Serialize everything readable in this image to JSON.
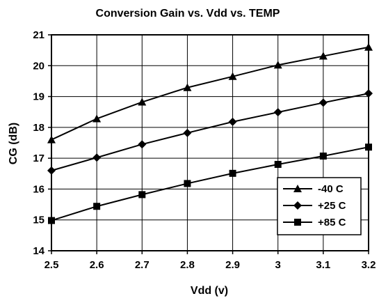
{
  "chart_data": {
    "type": "line",
    "title": "Conversion Gain vs. Vdd vs. TEMP",
    "xlabel": "Vdd (v)",
    "ylabel": "CG (dB)",
    "x": [
      2.5,
      2.6,
      2.7,
      2.8,
      2.9,
      3.0,
      3.1,
      3.2
    ],
    "x_tick_labels": [
      "2.5",
      "2.6",
      "2.7",
      "2.8",
      "2.9",
      "3",
      "3.1",
      "3.2"
    ],
    "y_ticks": [
      14,
      15,
      16,
      17,
      18,
      19,
      20,
      21
    ],
    "y_tick_labels": [
      "14",
      "15",
      "16",
      "17",
      "18",
      "19",
      "20",
      "21"
    ],
    "xlim": [
      2.5,
      3.2
    ],
    "ylim": [
      14,
      21
    ],
    "grid": true,
    "legend_position": "bottom-right",
    "series": [
      {
        "name": "-40 C",
        "marker": "triangle",
        "values": [
          17.6,
          18.28,
          18.82,
          19.29,
          19.65,
          20.02,
          20.31,
          20.6
        ]
      },
      {
        "name": "+25 C",
        "marker": "diamond",
        "values": [
          16.6,
          17.02,
          17.45,
          17.82,
          18.18,
          18.49,
          18.8,
          19.1
        ]
      },
      {
        "name": "+85 C",
        "marker": "square",
        "values": [
          14.98,
          15.44,
          15.82,
          16.18,
          16.51,
          16.8,
          17.07,
          17.36
        ]
      }
    ]
  }
}
